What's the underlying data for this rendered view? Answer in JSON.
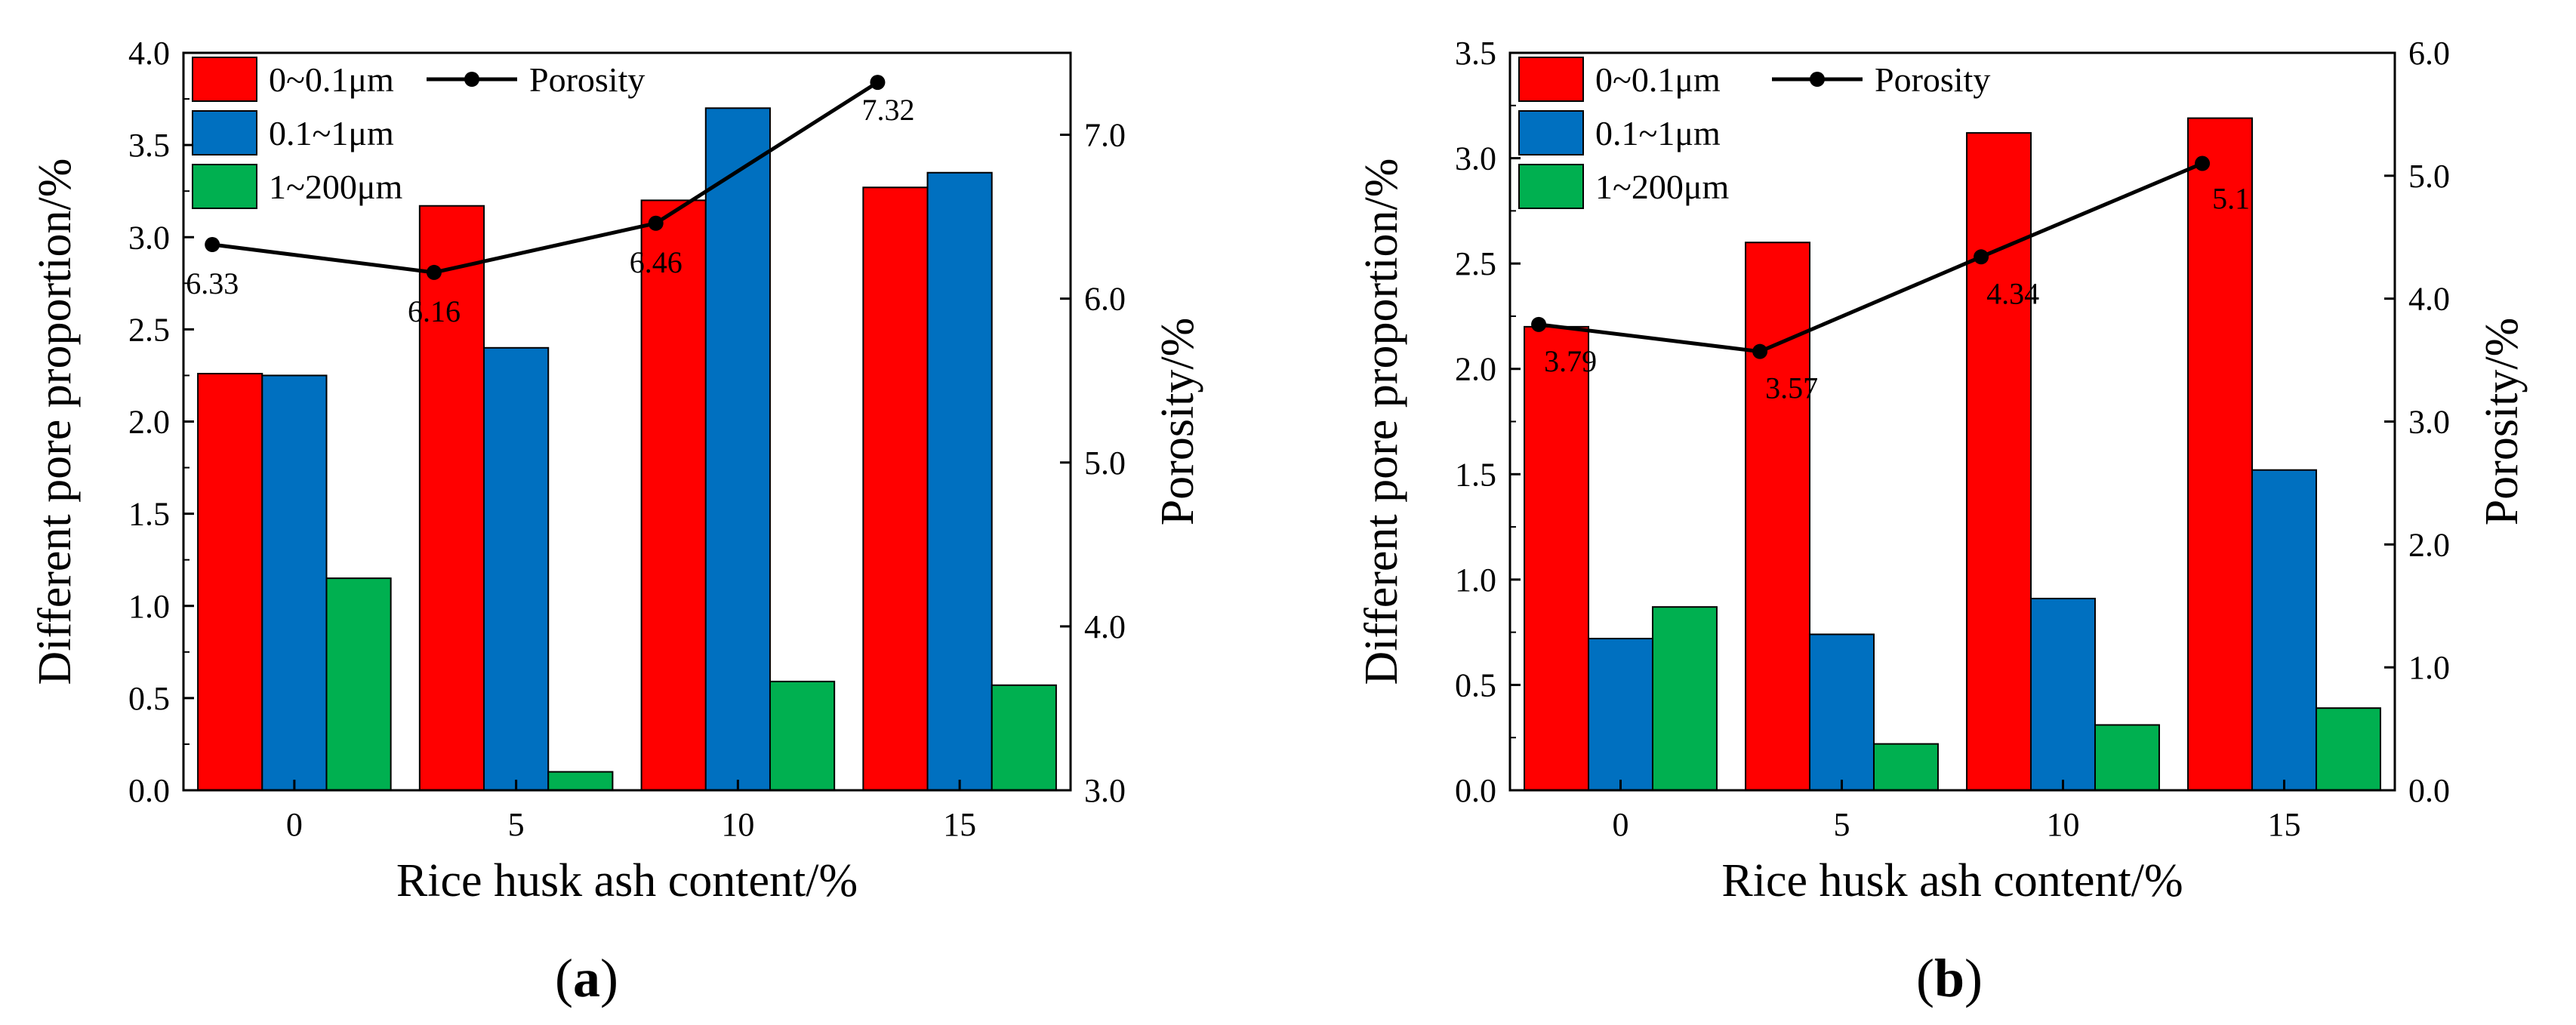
{
  "chart_data": [
    {
      "panel": "a",
      "type": "bar",
      "categories": [
        "0",
        "5",
        "10",
        "15"
      ],
      "xlabel": "Rice husk ash content/%",
      "ylabel": "Different pore proportion/%",
      "y2label": "Porosity/%",
      "ylim": [
        0,
        4.0
      ],
      "y2lim": [
        3.0,
        7.5
      ],
      "yticks": [
        "0.0",
        "0.5",
        "1.0",
        "1.5",
        "2.0",
        "2.5",
        "3.0",
        "3.5",
        "4.0"
      ],
      "y2ticks": [
        "3.0",
        "4.0",
        "5.0",
        "6.0",
        "7.0"
      ],
      "grid": false,
      "legend_position": "top-left",
      "series": [
        {
          "name": "0~0.1μm",
          "kind": "bar",
          "color": "#ff0000",
          "values": [
            2.26,
            3.17,
            3.2,
            3.27
          ]
        },
        {
          "name": "0.1~1μm",
          "kind": "bar",
          "color": "#0070c0",
          "values": [
            2.25,
            2.4,
            3.7,
            3.35
          ]
        },
        {
          "name": "1~200μm",
          "kind": "bar",
          "color": "#00b050",
          "values": [
            1.15,
            0.1,
            0.59,
            0.57
          ]
        },
        {
          "name": "Porosity",
          "kind": "line",
          "axis": "right",
          "color": "#000000",
          "values": [
            6.33,
            6.16,
            6.46,
            7.32
          ],
          "labels": [
            "6.33",
            "6.16",
            "6.46",
            "7.32"
          ]
        }
      ]
    },
    {
      "panel": "b",
      "type": "bar",
      "categories": [
        "0",
        "5",
        "10",
        "15"
      ],
      "xlabel": "Rice husk ash content/%",
      "ylabel": "Different pore proportion/%",
      "y2label": "Porosity/%",
      "ylim": [
        0,
        3.5
      ],
      "y2lim": [
        0,
        6.0
      ],
      "yticks": [
        "0.0",
        "0.5",
        "1.0",
        "1.5",
        "2.0",
        "2.5",
        "3.0",
        "3.5"
      ],
      "y2ticks": [
        "0.0",
        "1.0",
        "2.0",
        "3.0",
        "4.0",
        "5.0",
        "6.0"
      ],
      "grid": false,
      "legend_position": "top-left",
      "series": [
        {
          "name": "0~0.1μm",
          "kind": "bar",
          "color": "#ff0000",
          "values": [
            2.2,
            2.6,
            3.12,
            3.19
          ]
        },
        {
          "name": "0.1~1μm",
          "kind": "bar",
          "color": "#0070c0",
          "values": [
            0.72,
            0.74,
            0.91,
            1.52
          ]
        },
        {
          "name": "1~200μm",
          "kind": "bar",
          "color": "#00b050",
          "values": [
            0.87,
            0.22,
            0.31,
            0.39
          ]
        },
        {
          "name": "Porosity",
          "kind": "line",
          "axis": "right",
          "color": "#000000",
          "values": [
            3.79,
            3.57,
            4.34,
            5.1
          ],
          "labels": [
            "3.79",
            "3.57",
            "4.34",
            "5.1"
          ]
        }
      ]
    }
  ],
  "captions": [
    "a",
    "b"
  ]
}
